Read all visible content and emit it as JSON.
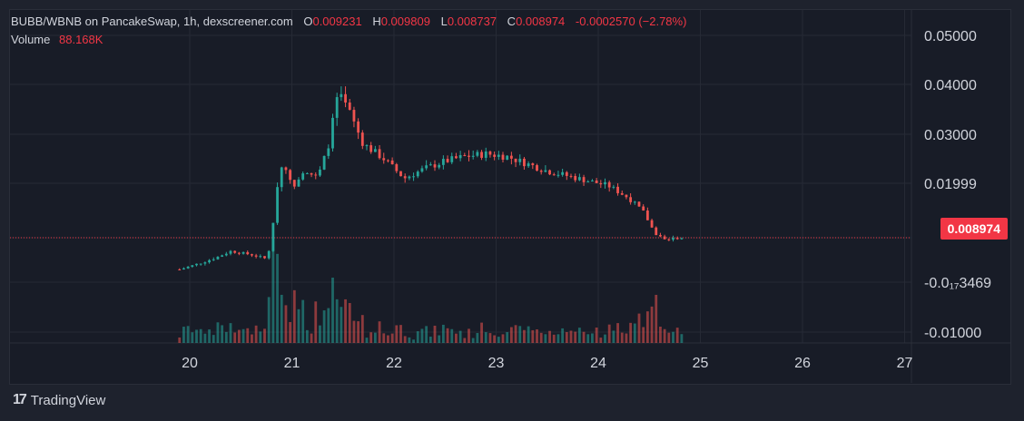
{
  "legend": {
    "pair": "BUBB/WBNB on PancakeSwap, 1h, dexscreener.com",
    "o_label": "O",
    "o_value": "0.009231",
    "h_label": "H",
    "h_value": "0.009809",
    "l_label": "L",
    "l_value": "0.008737",
    "c_label": "C",
    "c_value": "0.008974",
    "change": "-0.0002570 (−2.78%)",
    "volume_label": "Volume",
    "volume_value": "88.168K"
  },
  "current_price_label": "0.008974",
  "brand": {
    "name": "TradingView",
    "mark": "17"
  },
  "colors": {
    "up": "#26a69a",
    "down": "#ef5350",
    "price_line": "#f23645",
    "grid": "#262a35",
    "text": "#d1d4dc"
  },
  "chart_data": {
    "type": "candlestick",
    "x_ticks": [
      "20",
      "21",
      "22",
      "23",
      "24",
      "25",
      "26",
      "27"
    ],
    "y_ticks": [
      "0.05000",
      "0.04000",
      "0.03000",
      "0.01999",
      "0.008974",
      "-0.0₁₇3469",
      "-0.01000"
    ],
    "y_range": [
      -0.012,
      0.052
    ],
    "current_price": 0.008974,
    "x_domain_days": [
      19.9,
      24.85
    ],
    "series_points": [
      [
        19.9,
        0.0015
      ],
      [
        20.0,
        0.0022
      ],
      [
        20.1,
        0.003
      ],
      [
        20.25,
        0.0042
      ],
      [
        20.4,
        0.0058
      ],
      [
        20.6,
        0.005
      ],
      [
        20.75,
        0.004
      ],
      [
        20.8,
        0.008
      ],
      [
        20.85,
        0.019
      ],
      [
        20.92,
        0.025
      ],
      [
        21.0,
        0.019
      ],
      [
        21.12,
        0.023
      ],
      [
        21.25,
        0.021
      ],
      [
        21.35,
        0.027
      ],
      [
        21.45,
        0.038
      ],
      [
        21.55,
        0.035
      ],
      [
        21.7,
        0.028
      ],
      [
        21.9,
        0.025
      ],
      [
        22.1,
        0.021
      ],
      [
        22.3,
        0.023
      ],
      [
        22.5,
        0.0245
      ],
      [
        22.7,
        0.0255
      ],
      [
        22.9,
        0.026
      ],
      [
        23.1,
        0.0255
      ],
      [
        23.3,
        0.024
      ],
      [
        23.5,
        0.0225
      ],
      [
        23.7,
        0.0215
      ],
      [
        23.9,
        0.0205
      ],
      [
        24.1,
        0.0195
      ],
      [
        24.3,
        0.017
      ],
      [
        24.45,
        0.014
      ],
      [
        24.55,
        0.01
      ],
      [
        24.65,
        0.0085
      ],
      [
        24.75,
        0.0088
      ],
      [
        24.85,
        0.009
      ]
    ]
  }
}
